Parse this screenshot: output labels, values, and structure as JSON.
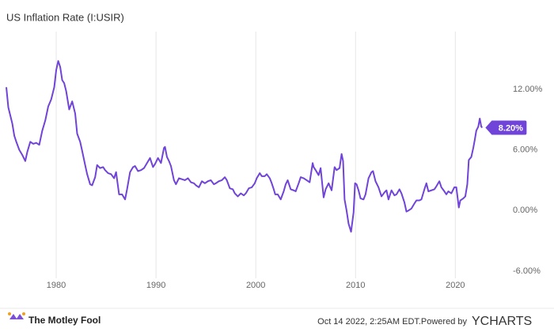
{
  "chart_data": {
    "type": "line",
    "title": "US Inflation Rate (I:USIR)",
    "xlim": [
      1975,
      2022.75
    ],
    "xticks": [
      1980,
      1990,
      2000,
      2010,
      2020
    ],
    "ylim": [
      -6.7,
      17.7
    ],
    "yticks": [
      {
        "value": -6,
        "label": "-6.00%"
      },
      {
        "value": 0,
        "label": "0.00%"
      },
      {
        "value": 6,
        "label": "6.00%"
      },
      {
        "value": 12,
        "label": "12.00%"
      }
    ],
    "grid": "x",
    "series": [
      {
        "name": "US Inflation Rate",
        "color": "#7044d8",
        "last_value_label": "8.20%",
        "x": [
          1975.0,
          1975.2,
          1975.4,
          1975.6,
          1975.8,
          1976.0,
          1976.3,
          1976.6,
          1976.9,
          1977.1,
          1977.4,
          1977.7,
          1978.0,
          1978.3,
          1978.6,
          1978.9,
          1979.2,
          1979.5,
          1979.8,
          1980.0,
          1980.2,
          1980.4,
          1980.6,
          1980.8,
          1981.0,
          1981.3,
          1981.6,
          1981.9,
          1982.1,
          1982.4,
          1982.6,
          1982.9,
          1983.1,
          1983.4,
          1983.6,
          1983.9,
          1984.1,
          1984.4,
          1984.7,
          1984.9,
          1985.2,
          1985.5,
          1985.8,
          1986.0,
          1986.3,
          1986.6,
          1986.9,
          1987.1,
          1987.4,
          1987.7,
          1987.9,
          1988.2,
          1988.5,
          1988.8,
          1989.1,
          1989.4,
          1989.7,
          1989.9,
          1990.2,
          1990.5,
          1990.8,
          1990.9,
          1991.1,
          1991.3,
          1991.5,
          1991.8,
          1992.0,
          1992.3,
          1992.6,
          1992.9,
          1993.2,
          1993.5,
          1993.8,
          1994.0,
          1994.3,
          1994.6,
          1994.9,
          1995.2,
          1995.5,
          1995.8,
          1996.0,
          1996.3,
          1996.6,
          1996.9,
          1997.1,
          1997.4,
          1997.7,
          1997.9,
          1998.2,
          1998.5,
          1998.8,
          1999.0,
          1999.3,
          1999.6,
          1999.9,
          2000.1,
          2000.4,
          2000.6,
          2000.9,
          2001.1,
          2001.4,
          2001.6,
          2001.8,
          2001.95,
          2002.2,
          2002.5,
          2002.8,
          2003.0,
          2003.2,
          2003.5,
          2003.8,
          2004.0,
          2004.3,
          2004.5,
          2004.8,
          2005.1,
          2005.4,
          2005.7,
          2005.8,
          2006.0,
          2006.3,
          2006.5,
          2006.8,
          2007.0,
          2007.3,
          2007.6,
          2007.9,
          2008.1,
          2008.4,
          2008.6,
          2008.75,
          2008.9,
          2009.1,
          2009.3,
          2009.55,
          2009.8,
          2009.95,
          2010.1,
          2010.3,
          2010.5,
          2010.8,
          2011.0,
          2011.3,
          2011.6,
          2011.75,
          2012.0,
          2012.3,
          2012.6,
          2012.9,
          2013.1,
          2013.3,
          2013.6,
          2013.9,
          2014.1,
          2014.4,
          2014.6,
          2014.9,
          2015.1,
          2015.3,
          2015.6,
          2015.9,
          2016.1,
          2016.4,
          2016.6,
          2016.9,
          2017.1,
          2017.3,
          2017.6,
          2017.9,
          2018.1,
          2018.4,
          2018.6,
          2018.9,
          2019.1,
          2019.3,
          2019.6,
          2019.9,
          2020.1,
          2020.35,
          2020.5,
          2020.8,
          2021.0,
          2021.2,
          2021.35,
          2021.6,
          2021.8,
          2021.95,
          2022.1,
          2022.3,
          2022.45,
          2022.6,
          2022.7
        ],
        "values": [
          12.2,
          10.2,
          9.4,
          8.6,
          7.4,
          6.8,
          6.0,
          5.5,
          4.9,
          5.8,
          6.8,
          6.6,
          6.7,
          6.5,
          7.9,
          8.9,
          10.3,
          11.0,
          12.2,
          13.9,
          14.8,
          14.2,
          12.9,
          12.6,
          11.8,
          10.0,
          10.8,
          9.6,
          7.6,
          6.8,
          5.9,
          4.5,
          3.6,
          2.6,
          2.5,
          3.3,
          4.5,
          4.2,
          4.3,
          4.0,
          3.7,
          3.6,
          3.2,
          3.8,
          1.6,
          1.6,
          1.1,
          2.1,
          3.8,
          4.3,
          4.4,
          3.9,
          4.0,
          4.2,
          4.7,
          5.2,
          4.3,
          4.6,
          5.2,
          4.7,
          6.2,
          6.3,
          5.3,
          4.9,
          4.4,
          3.0,
          2.6,
          3.2,
          3.1,
          3.0,
          3.2,
          2.8,
          2.7,
          2.5,
          2.3,
          2.9,
          2.7,
          2.9,
          3.0,
          2.6,
          2.7,
          2.9,
          3.0,
          3.3,
          3.0,
          2.2,
          2.1,
          1.7,
          1.4,
          1.7,
          1.5,
          1.7,
          2.2,
          2.3,
          2.7,
          3.2,
          3.7,
          3.4,
          3.4,
          3.6,
          3.2,
          2.7,
          2.1,
          1.6,
          1.6,
          1.1,
          1.9,
          2.6,
          3.0,
          2.1,
          2.0,
          1.9,
          2.7,
          3.3,
          3.2,
          3.0,
          2.8,
          4.7,
          4.3,
          4.0,
          3.5,
          4.2,
          1.3,
          2.1,
          2.7,
          2.0,
          4.3,
          4.0,
          4.2,
          5.6,
          4.9,
          1.1,
          0.0,
          -1.3,
          -2.1,
          -0.2,
          2.7,
          2.6,
          2.0,
          1.2,
          1.1,
          1.6,
          3.2,
          3.8,
          3.9,
          2.9,
          2.3,
          1.4,
          1.8,
          2.0,
          1.1,
          2.0,
          1.5,
          1.6,
          2.1,
          1.7,
          0.8,
          -0.1,
          0.0,
          0.2,
          0.7,
          1.0,
          1.0,
          1.1,
          2.1,
          2.7,
          1.9,
          2.0,
          2.1,
          2.4,
          2.9,
          2.3,
          1.9,
          1.6,
          1.9,
          1.7,
          2.3,
          2.3,
          0.3,
          1.0,
          1.2,
          1.4,
          2.6,
          5.0,
          5.3,
          6.2,
          7.0,
          7.9,
          8.3,
          9.1,
          8.3,
          8.2
        ]
      }
    ]
  },
  "footer": {
    "brand": "The Motley Fool",
    "timestamp": "Oct 14 2022, 2:25AM EDT.",
    "powered_by": "Powered by",
    "provider": "YCHARTS"
  }
}
